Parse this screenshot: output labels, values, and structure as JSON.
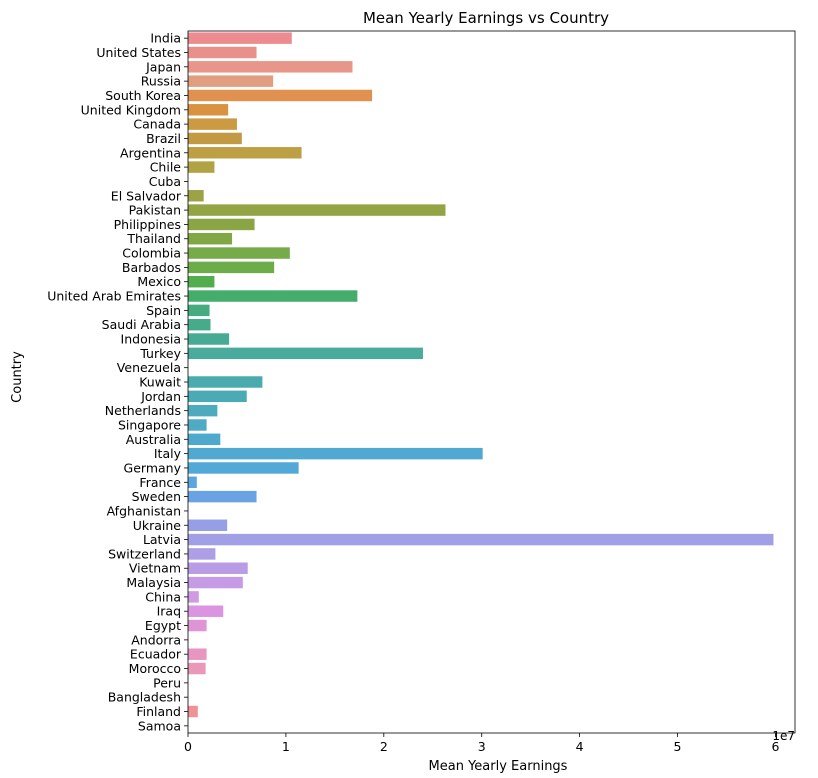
{
  "chart_data": {
    "type": "bar",
    "orientation": "horizontal",
    "title": "Mean Yearly Earnings vs Country",
    "xlabel": "Mean Yearly Earnings",
    "ylabel": "Country",
    "x_offset_label": "1e7",
    "xlim": [
      0,
      62000000
    ],
    "x_ticks": [
      0,
      10000000,
      20000000,
      30000000,
      40000000,
      50000000,
      60000000
    ],
    "x_tick_labels": [
      "0",
      "1",
      "2",
      "3",
      "4",
      "5",
      "6"
    ],
    "grid": false,
    "categories": [
      "India",
      "United States",
      "Japan",
      "Russia",
      "South Korea",
      "United Kingdom",
      "Canada",
      "Brazil",
      "Argentina",
      "Chile",
      "Cuba",
      "El Salvador",
      "Pakistan",
      "Philippines",
      "Thailand",
      "Colombia",
      "Barbados",
      "Mexico",
      "United Arab Emirates",
      "Spain",
      "Saudi Arabia",
      "Indonesia",
      "Turkey",
      "Venezuela",
      "Kuwait",
      "Jordan",
      "Netherlands",
      "Singapore",
      "Australia",
      "Italy",
      "Germany",
      "France",
      "Sweden",
      "Afghanistan",
      "Ukraine",
      "Latvia",
      "Switzerland",
      "Vietnam",
      "Malaysia",
      "China",
      "Iraq",
      "Egypt",
      "Andorra",
      "Ecuador",
      "Morocco",
      "Peru",
      "Bangladesh",
      "Finland",
      "Samoa"
    ],
    "values": [
      10600000,
      7000000,
      16800000,
      8700000,
      18800000,
      4100000,
      5000000,
      5500000,
      11600000,
      2700000,
      0,
      1600000,
      26300000,
      6800000,
      4500000,
      10400000,
      8800000,
      2700000,
      17300000,
      2200000,
      2300000,
      4200000,
      24000000,
      0,
      7600000,
      6000000,
      3000000,
      1900000,
      3300000,
      30100000,
      11300000,
      900000,
      7000000,
      0,
      4000000,
      59800000,
      2800000,
      6100000,
      5600000,
      1100000,
      3600000,
      1900000,
      0,
      1900000,
      1800000,
      0,
      0,
      1000000,
      0
    ],
    "colors": [
      "#ee8b91",
      "#e9908b",
      "#e8968a",
      "#e09d7f",
      "#e0904f",
      "#d89240",
      "#cc9a43",
      "#c29a44",
      "#bca043",
      "#b1a244",
      "#a6a446",
      "#9ba346",
      "#93a445",
      "#8aa644",
      "#80a744",
      "#77aa48",
      "#6cad4a",
      "#52ae4d",
      "#44ad6b",
      "#46ab7f",
      "#46ab8a",
      "#47ab94",
      "#4aab9c",
      "#49aba6",
      "#4aabaf",
      "#4babb5",
      "#4dabbd",
      "#4eaac5",
      "#4fa9cc",
      "#50a9d1",
      "#52a8d7",
      "#5aa6df",
      "#6aa3e3",
      "#85a0e4",
      "#969fe6",
      "#a19fe6",
      "#ad9ee6",
      "#b99ce6",
      "#c59be6",
      "#d099e4",
      "#db94e0",
      "#df94d6",
      "#e394cb",
      "#e796c0",
      "#eb97b7",
      "#ec96ac",
      "#ee95a2",
      "#ee9298",
      "#ee8f90"
    ]
  }
}
